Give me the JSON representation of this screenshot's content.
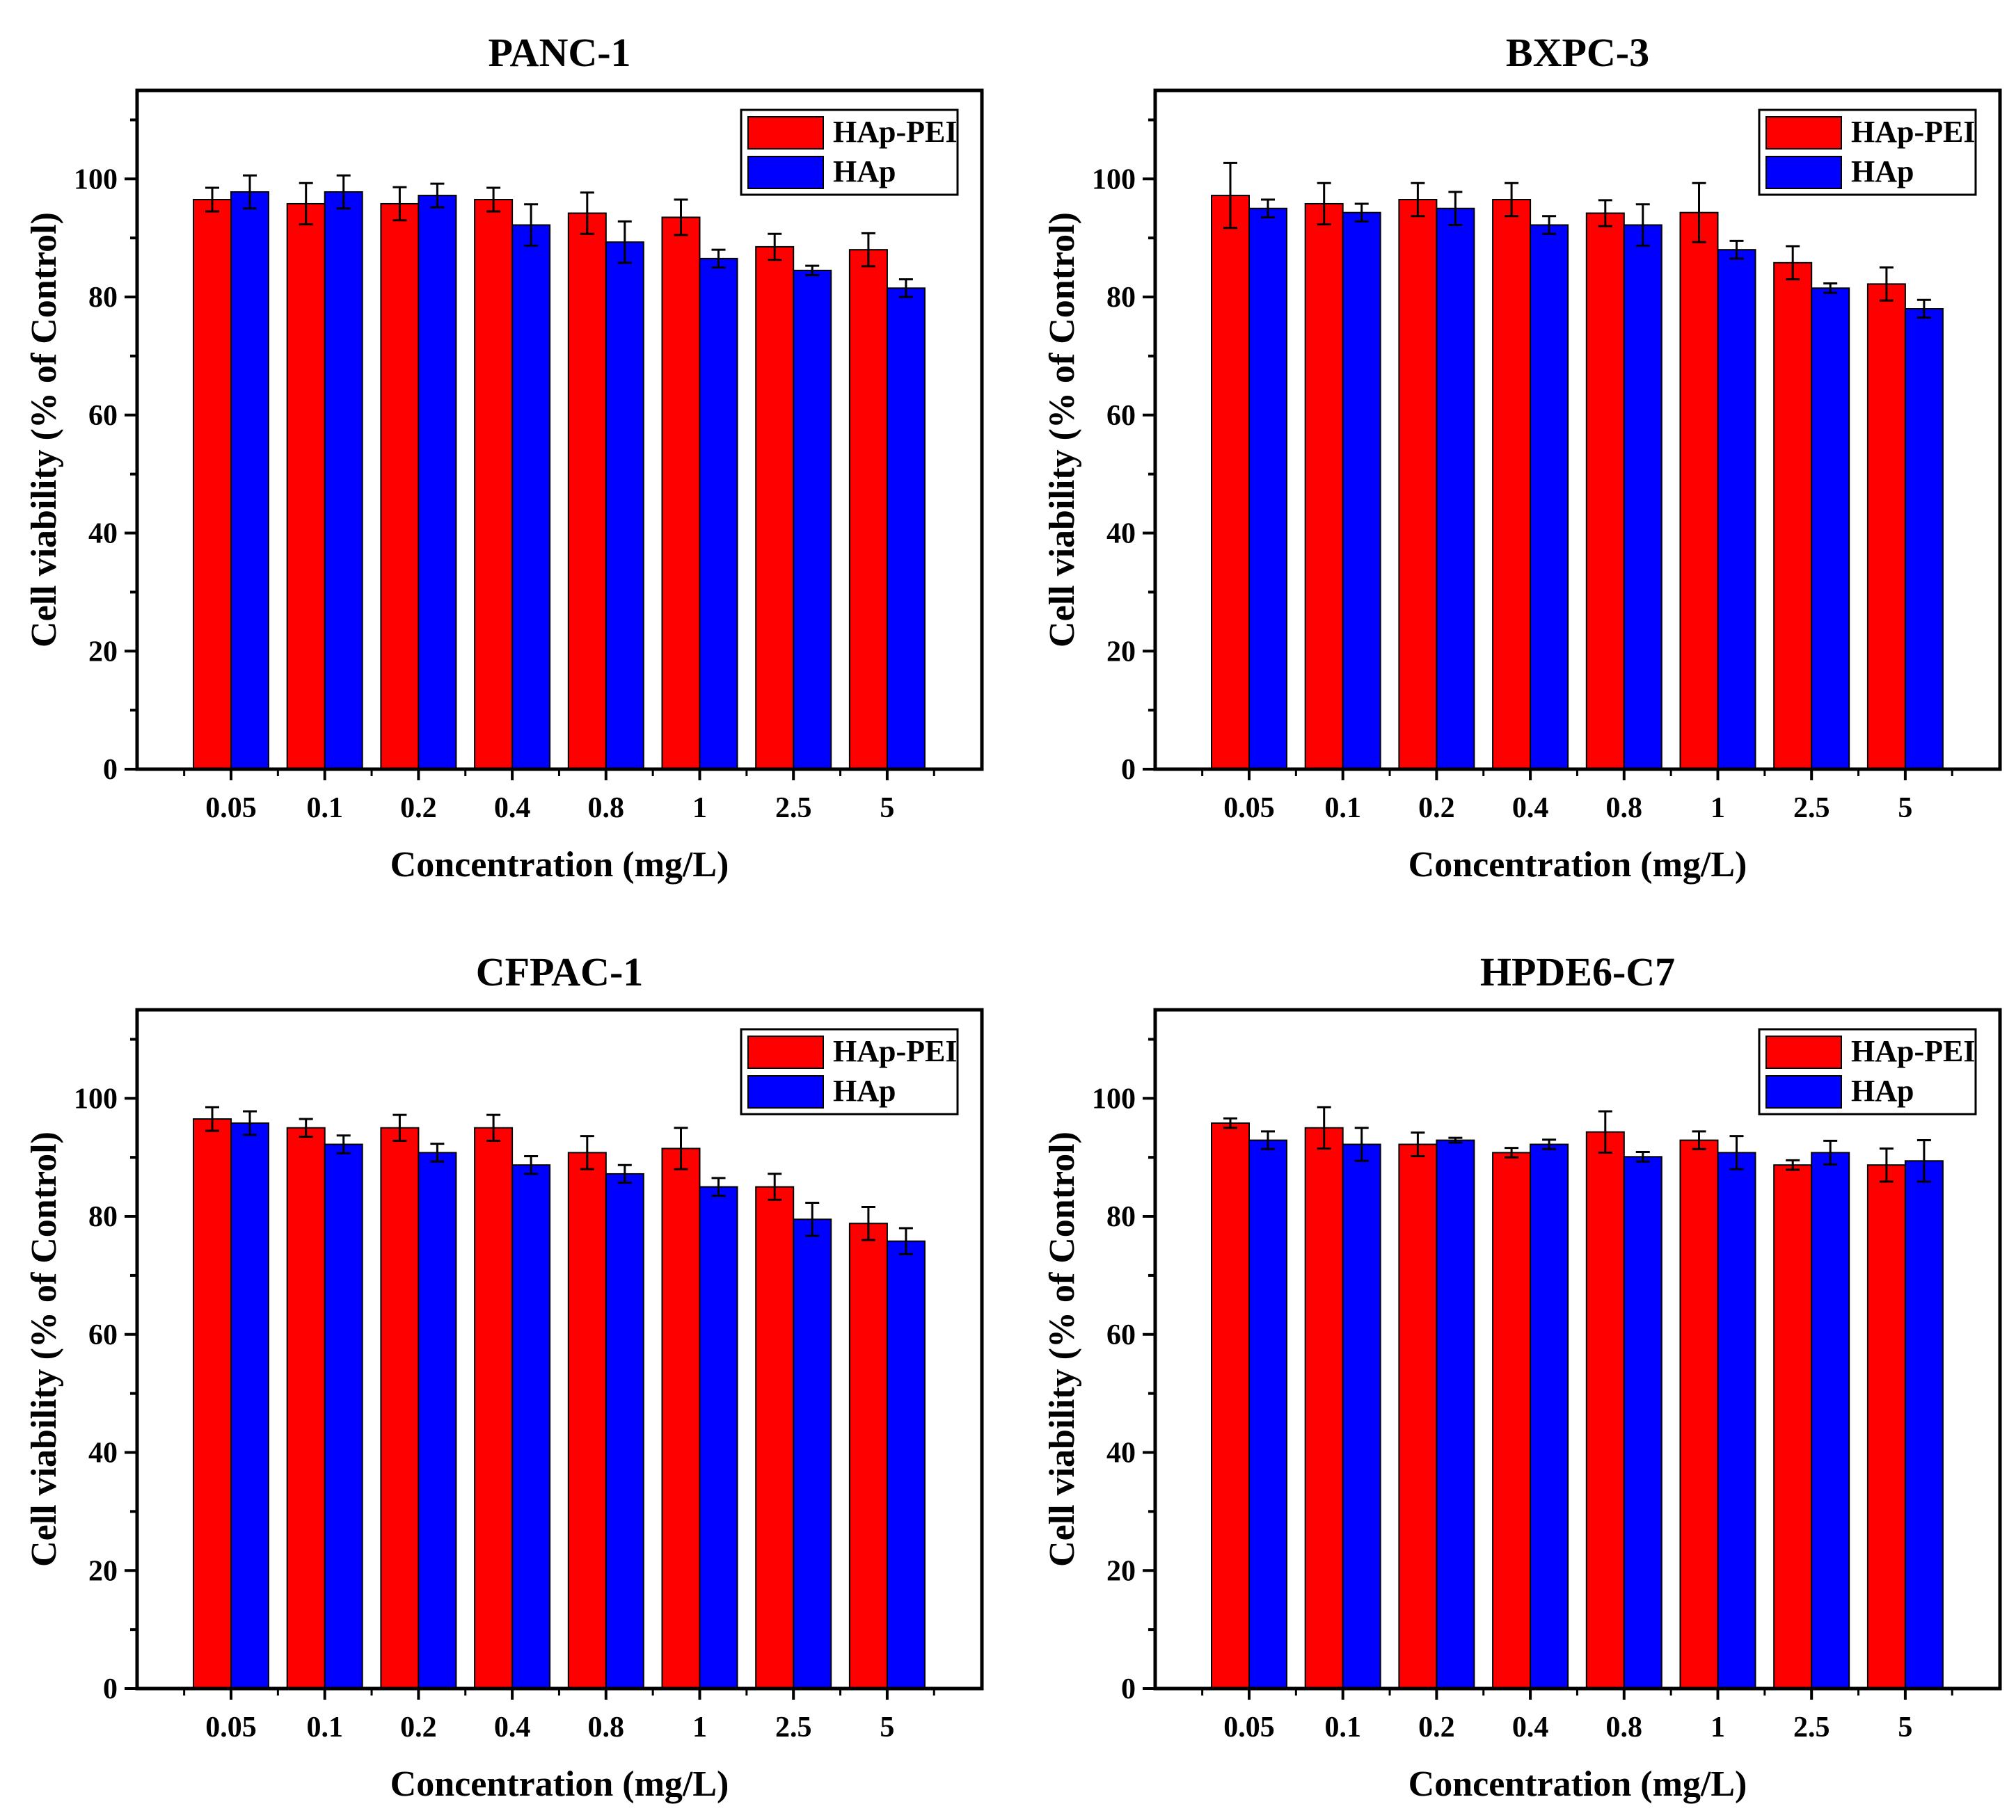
{
  "colors": {
    "hap_pei": "#ff0000",
    "hap": "#0000ff",
    "axis": "#000000"
  },
  "chart_data": [
    {
      "type": "bar",
      "title": "PANC-1",
      "xlabel": "Concentration (mg/L)",
      "ylabel": "Cell viability (% of Control)",
      "ylim": [
        0,
        115
      ],
      "yticks": [
        0,
        20,
        40,
        60,
        80,
        100
      ],
      "categories": [
        "0.05",
        "0.1",
        "0.2",
        "0.4",
        "0.8",
        "1",
        "2.5",
        "5"
      ],
      "legend_position": "top-right",
      "series": [
        {
          "name": "HAp-PEI",
          "values": [
            96.5,
            95.8,
            95.8,
            96.5,
            94.2,
            93.5,
            88.5,
            88.0
          ],
          "errors": [
            2.0,
            3.5,
            2.8,
            2.0,
            3.5,
            3.0,
            2.2,
            2.8
          ]
        },
        {
          "name": "HAp",
          "values": [
            97.8,
            97.8,
            97.2,
            92.2,
            89.3,
            86.5,
            84.5,
            81.5
          ],
          "errors": [
            2.8,
            2.8,
            2.0,
            3.5,
            3.5,
            1.5,
            0.8,
            1.5
          ]
        }
      ]
    },
    {
      "type": "bar",
      "title": "BXPC-3",
      "xlabel": "Concentration (mg/L)",
      "ylabel": "Cell viability (% of Control)",
      "ylim": [
        0,
        115
      ],
      "yticks": [
        0,
        20,
        40,
        60,
        80,
        100
      ],
      "categories": [
        "0.05",
        "0.1",
        "0.2",
        "0.4",
        "0.8",
        "1",
        "2.5",
        "5"
      ],
      "legend_position": "top-right",
      "series": [
        {
          "name": "HAp-PEI",
          "values": [
            97.2,
            95.8,
            96.5,
            96.5,
            94.2,
            94.3,
            85.8,
            82.2
          ],
          "errors": [
            5.5,
            3.5,
            2.8,
            2.8,
            2.2,
            5.0,
            2.8,
            2.8
          ]
        },
        {
          "name": "HAp",
          "values": [
            95.0,
            94.3,
            95.0,
            92.2,
            92.2,
            88.0,
            81.5,
            78.0
          ],
          "errors": [
            1.5,
            1.5,
            2.8,
            1.5,
            3.5,
            1.5,
            0.8,
            1.5
          ]
        }
      ]
    },
    {
      "type": "bar",
      "title": "CFPAC-1",
      "xlabel": "Concentration (mg/L)",
      "ylabel": "Cell viability (% of Control)",
      "ylim": [
        0,
        115
      ],
      "yticks": [
        0,
        20,
        40,
        60,
        80,
        100
      ],
      "categories": [
        "0.05",
        "0.1",
        "0.2",
        "0.4",
        "0.8",
        "1",
        "2.5",
        "5"
      ],
      "legend_position": "top-right",
      "series": [
        {
          "name": "HAp-PEI",
          "values": [
            96.5,
            95.0,
            95.0,
            95.0,
            90.8,
            91.5,
            85.0,
            78.8
          ],
          "errors": [
            2.0,
            1.5,
            2.2,
            2.2,
            2.8,
            3.5,
            2.2,
            2.8
          ]
        },
        {
          "name": "HAp",
          "values": [
            95.8,
            92.2,
            90.8,
            88.7,
            87.2,
            85.0,
            79.5,
            75.8
          ],
          "errors": [
            2.0,
            1.5,
            1.5,
            1.5,
            1.5,
            1.5,
            2.8,
            2.2
          ]
        }
      ]
    },
    {
      "type": "bar",
      "title": "HPDE6-C7",
      "xlabel": "Concentration (mg/L)",
      "ylabel": "Cell viability (% of Control)",
      "ylim": [
        0,
        115
      ],
      "yticks": [
        0,
        20,
        40,
        60,
        80,
        100
      ],
      "categories": [
        "0.05",
        "0.1",
        "0.2",
        "0.4",
        "0.8",
        "1",
        "2.5",
        "5"
      ],
      "legend_position": "top-right",
      "series": [
        {
          "name": "HAp-PEI",
          "values": [
            95.8,
            95.0,
            92.2,
            90.8,
            94.3,
            92.9,
            88.7,
            88.7
          ],
          "errors": [
            0.8,
            3.5,
            2.0,
            0.8,
            3.5,
            1.5,
            0.8,
            2.8
          ]
        },
        {
          "name": "HAp",
          "values": [
            92.9,
            92.2,
            92.9,
            92.2,
            90.1,
            90.8,
            90.8,
            89.4
          ],
          "errors": [
            1.5,
            2.8,
            0.4,
            0.8,
            0.8,
            2.8,
            2.0,
            3.5
          ]
        }
      ]
    }
  ]
}
